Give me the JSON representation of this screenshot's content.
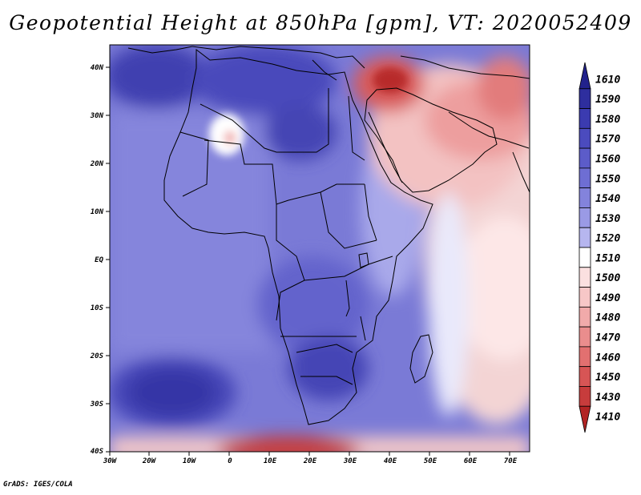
{
  "title": "Geopotential Height at 850hPa [gpm], VT: 2020052409",
  "credit": "GrADS: IGES/COLA",
  "axes": {
    "lon_labels": [
      "30W",
      "20W",
      "10W",
      "0",
      "10E",
      "20E",
      "30E",
      "40E",
      "50E",
      "60E",
      "70E"
    ],
    "lat_labels": [
      "40N",
      "30N",
      "20N",
      "10N",
      "EQ",
      "10S",
      "20S",
      "30S",
      "40S"
    ]
  },
  "colorbar": {
    "levels": [
      {
        "label": "1610",
        "color": "#22228c"
      },
      {
        "label": "1590",
        "color": "#2e2e9e"
      },
      {
        "label": "1580",
        "color": "#3b3bb0"
      },
      {
        "label": "1570",
        "color": "#4b4bbe"
      },
      {
        "label": "1560",
        "color": "#5c5cc9"
      },
      {
        "label": "1550",
        "color": "#6e6ed3"
      },
      {
        "label": "1540",
        "color": "#8383dc"
      },
      {
        "label": "1530",
        "color": "#9a9ae5"
      },
      {
        "label": "1520",
        "color": "#b6b6ef"
      },
      {
        "label": "1510",
        "color": "#ffffff"
      },
      {
        "label": "1500",
        "color": "#fbe0e0"
      },
      {
        "label": "1490",
        "color": "#f7c7c7"
      },
      {
        "label": "1480",
        "color": "#f1aaaa"
      },
      {
        "label": "1470",
        "color": "#ea8d8d"
      },
      {
        "label": "1460",
        "color": "#e27070"
      },
      {
        "label": "1450",
        "color": "#d75555"
      },
      {
        "label": "1430",
        "color": "#c73c3c"
      },
      {
        "label": "1410",
        "color": "#b22424"
      }
    ]
  }
}
